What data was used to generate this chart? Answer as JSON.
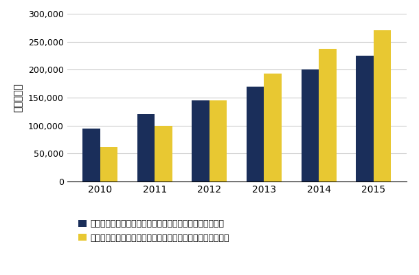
{
  "years": [
    "2010",
    "2011",
    "2012",
    "2013",
    "2014",
    "2015"
  ],
  "public_values": [
    95000,
    120000,
    145000,
    170000,
    200000,
    225000
  ],
  "private_values": [
    62000,
    100000,
    145000,
    193000,
    237000,
    270000
  ],
  "public_color": "#1a2e5a",
  "private_color": "#e8c832",
  "ylabel": "（百万円）",
  "ylim": [
    0,
    300000
  ],
  "yticks": [
    0,
    50000,
    100000,
    150000,
    200000,
    250000,
    300000
  ],
  "legend_public": "パブリッククラウドコンピューティング向けソフトウェア",
  "legend_private": "プライベートクラウドコンピューティング向けソフトウェア",
  "bar_width": 0.32,
  "background_color": "#ffffff",
  "grid_color": "#cccccc"
}
